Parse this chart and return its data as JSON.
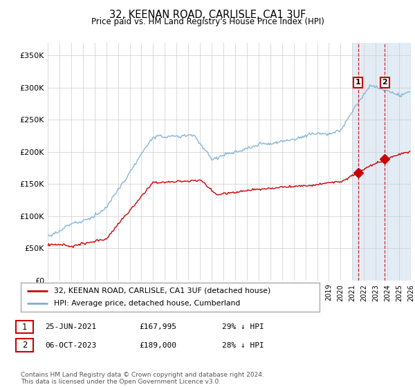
{
  "title": "32, KEENAN ROAD, CARLISLE, CA1 3UF",
  "subtitle": "Price paid vs. HM Land Registry's House Price Index (HPI)",
  "ylabel_ticks": [
    "£0",
    "£50K",
    "£100K",
    "£150K",
    "£200K",
    "£250K",
    "£300K",
    "£350K"
  ],
  "ytick_values": [
    0,
    50000,
    100000,
    150000,
    200000,
    250000,
    300000,
    350000
  ],
  "ylim": [
    0,
    370000
  ],
  "xlim_start": 1995,
  "xlim_end": 2026,
  "hpi_color": "#7bafd4",
  "price_color": "#cc0000",
  "transaction1_year": 2021.49,
  "transaction1_price": 167995,
  "transaction1_date": "25-JUN-2021",
  "transaction1_note": "29% ↓ HPI",
  "transaction2_year": 2023.77,
  "transaction2_price": 189000,
  "transaction2_date": "06-OCT-2023",
  "transaction2_note": "28% ↓ HPI",
  "legend_label_price": "32, KEENAN ROAD, CARLISLE, CA1 3UF (detached house)",
  "legend_label_hpi": "HPI: Average price, detached house, Cumberland",
  "footer": "Contains HM Land Registry data © Crown copyright and database right 2024.\nThis data is licensed under the Open Government Licence v3.0.",
  "background_color": "#ffffff",
  "grid_color": "#cccccc",
  "shade_color": "#ddeeff",
  "hatch_color": "#c0d0e8"
}
